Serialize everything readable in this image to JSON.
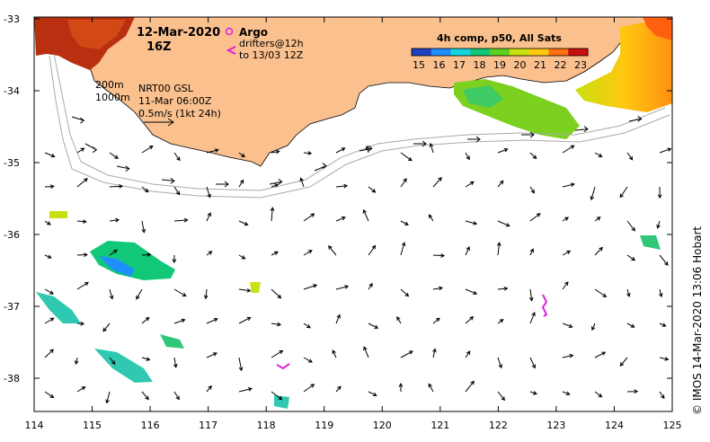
{
  "map": {
    "date": "12-Mar-2020",
    "hour": "16Z",
    "argo_label": "Argo",
    "drifters_label": "drifters@12h",
    "drifters_to": "to 13/03 12Z",
    "isobath_200": "200m",
    "isobath_1000": "1000m",
    "altimetry_source": "NRT00 GSL",
    "altimetry_time": "11-Mar 06:00Z",
    "scale_label": "0.5m/s (1kt 24h)",
    "credit": "© IMOS 14-Mar-2020 13:06 Hobart"
  },
  "colorbar": {
    "title": "4h comp, p50, All Sats",
    "ticks": [
      "15",
      "16",
      "17",
      "18",
      "19",
      "20",
      "21",
      "22",
      "23"
    ],
    "colors": [
      "#2040c0",
      "#1f8fff",
      "#14d4e0",
      "#10c878",
      "#60d020",
      "#c8e010",
      "#ffc810",
      "#ff7010",
      "#c81010"
    ]
  },
  "axes": {
    "x_ticks": [
      "114",
      "115",
      "116",
      "117",
      "118",
      "119",
      "120",
      "121",
      "122",
      "123",
      "124",
      "125"
    ],
    "y_ticks": [
      "-33",
      "-34",
      "-35",
      "-36",
      "-37",
      "-38"
    ]
  },
  "legend_icons": {
    "argo": "argo-float-icon",
    "drifter": "drifter-track-icon",
    "land_color": "#fac08e"
  }
}
